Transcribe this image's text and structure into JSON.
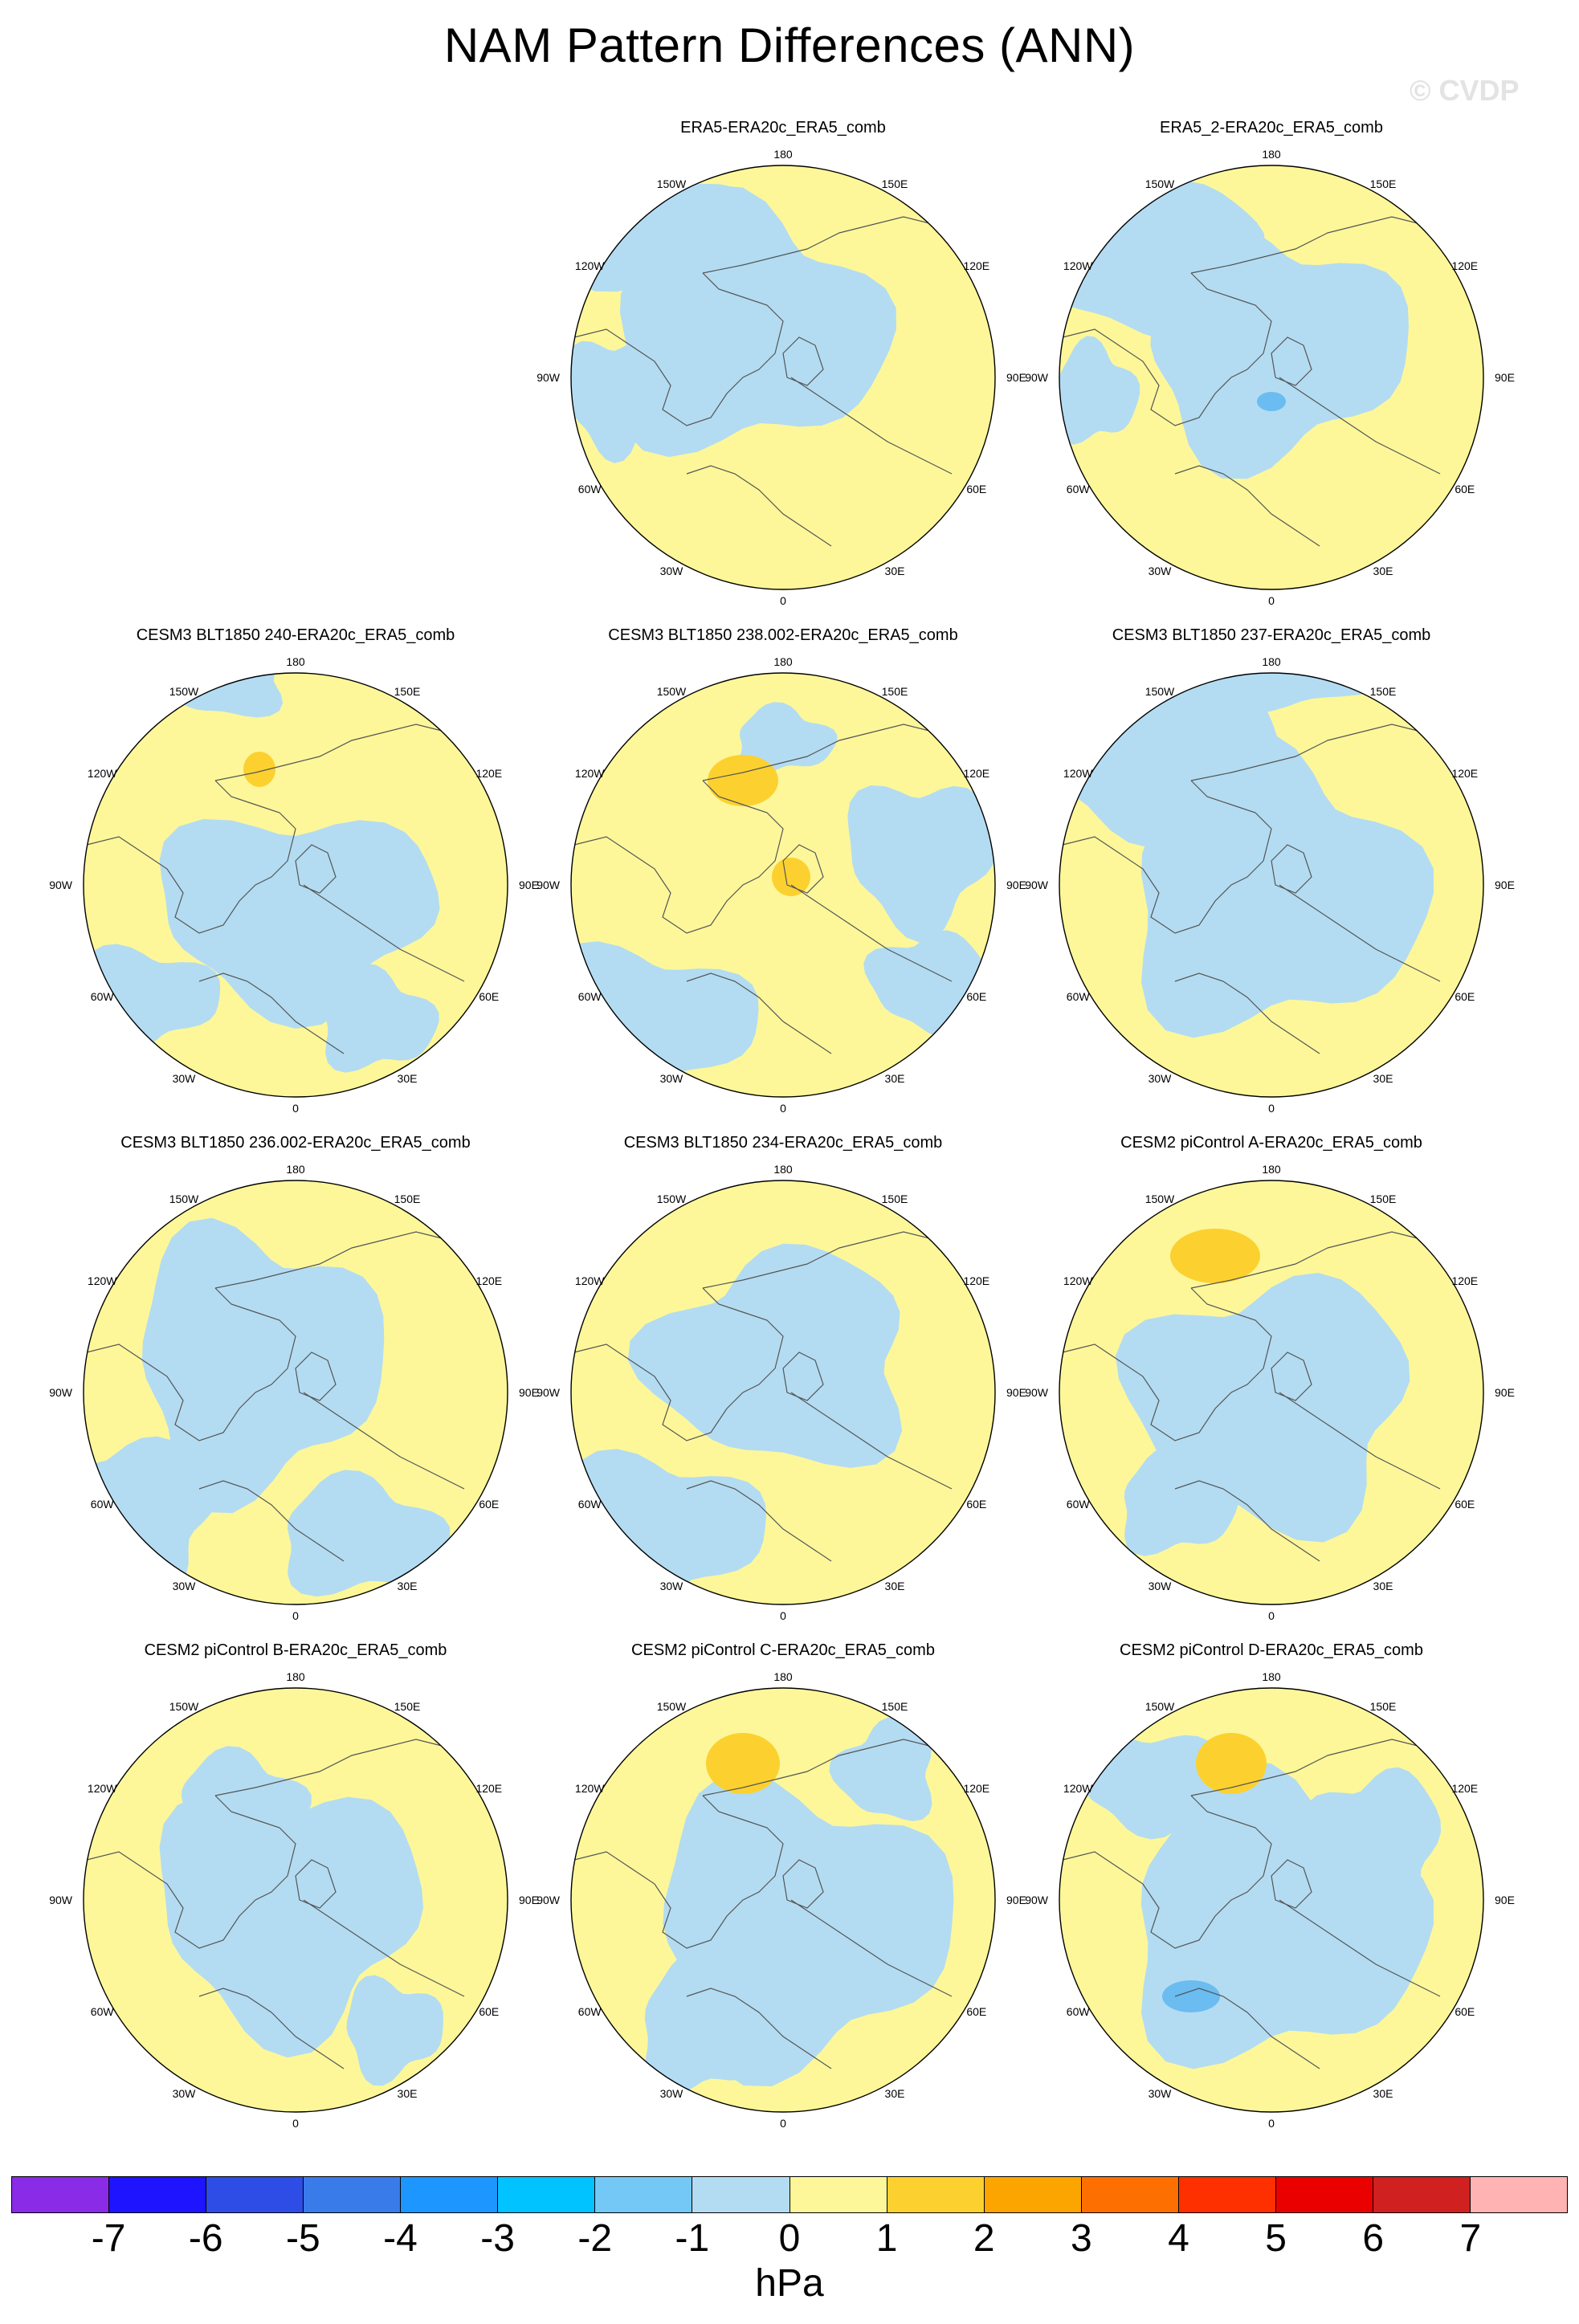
{
  "title": "NAM Pattern Differences (ANN)",
  "watermark": "© CVDP",
  "colors": {
    "negative_fill": "#b3dcf2",
    "positive_fill": "#fdf79a",
    "positive_strong": "#fcd12f",
    "negative_strong": "#6bbcf0",
    "coast": "#555555"
  },
  "lon_labels": {
    "top": "180",
    "top_right": "150E",
    "upper_right": "120E",
    "right": "90E",
    "lower_right": "60E",
    "bottom_right": "30E",
    "bottom": "0",
    "bottom_left": "30W",
    "lower_left": "60W",
    "left": "90W",
    "upper_left": "120W",
    "top_left": "150W"
  },
  "panels": [
    {
      "title": "ERA5-ERA20c_ERA5_comb"
    },
    {
      "title": "ERA5_2-ERA20c_ERA5_comb"
    },
    {
      "title": "CESM3 BLT1850 240-ERA20c_ERA5_comb"
    },
    {
      "title": "CESM3 BLT1850 238.002-ERA20c_ERA5_comb"
    },
    {
      "title": "CESM3 BLT1850 237-ERA20c_ERA5_comb"
    },
    {
      "title": "CESM3 BLT1850 236.002-ERA20c_ERA5_comb"
    },
    {
      "title": "CESM3 BLT1850 234-ERA20c_ERA5_comb"
    },
    {
      "title": "CESM2 piControl A-ERA20c_ERA5_comb"
    },
    {
      "title": "CESM2 piControl B-ERA20c_ERA5_comb"
    },
    {
      "title": "CESM2 piControl C-ERA20c_ERA5_comb"
    },
    {
      "title": "CESM2 piControl D-ERA20c_ERA5_comb"
    }
  ],
  "colorbar": {
    "units": "hPa",
    "tick_labels": [
      "-7",
      "-6",
      "-5",
      "-4",
      "-3",
      "-2",
      "-1",
      "0",
      "1",
      "2",
      "3",
      "4",
      "5",
      "6",
      "7"
    ],
    "colors": [
      "#8a2be8",
      "#1e14ff",
      "#2d4de6",
      "#3a7bea",
      "#1e96ff",
      "#00c3ff",
      "#73c8f5",
      "#b3dcf2",
      "#fdf79a",
      "#fcd12f",
      "#fca500",
      "#fc6f00",
      "#ff3000",
      "#eb0000",
      "#d12020",
      "#ffb3b3"
    ]
  }
}
